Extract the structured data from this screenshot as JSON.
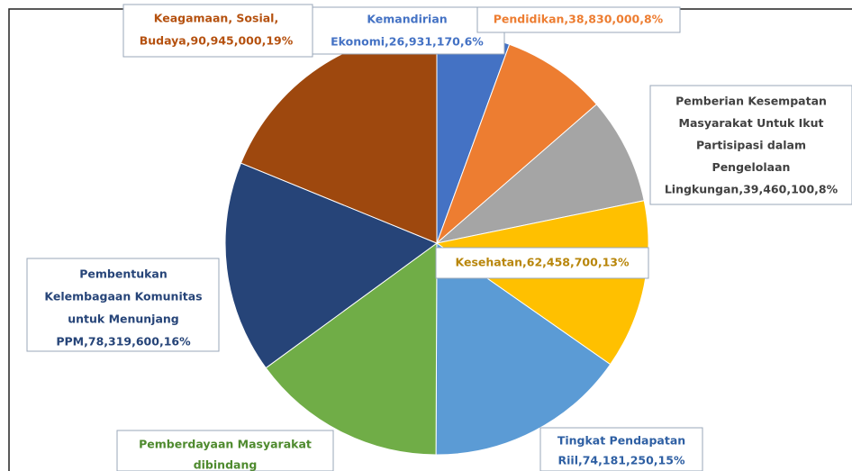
{
  "chart_data": {
    "type": "pie",
    "categories": [
      [
        "Kemandirian",
        "Ekonomi,26,931,170,6%"
      ],
      [
        "Pendidikan,38,830,000,8%"
      ],
      [
        "Pemberian Kesempatan",
        "Masyarakat Untuk Ikut",
        "Partisipasi dalam",
        "Pengelolaan",
        "Lingkungan,39,460,100,8%"
      ],
      [
        "Kesehatan,62,458,700,13%"
      ],
      [
        "Tingkat Pendapatan",
        "Riil,74,181,250,15%"
      ],
      [
        "Pemberdayaan Masyarakat",
        "dibindang"
      ],
      [
        "Pembentukan",
        "Kelembagaan Komunitas",
        "untuk Menunjang",
        "PPM,78,319,600,16%"
      ],
      [
        "Keagamaan, Sosial,",
        "Budaya,90,945,000,19%"
      ]
    ],
    "values": [
      26931170,
      38830000,
      39460100,
      62458700,
      74181250,
      72000000,
      78319600,
      90945000
    ],
    "colors": [
      "#4472c4",
      "#ed7d31",
      "#a5a5a5",
      "#ffc000",
      "#5b9bd5",
      "#70ad47",
      "#264478",
      "#9e480e"
    ]
  }
}
